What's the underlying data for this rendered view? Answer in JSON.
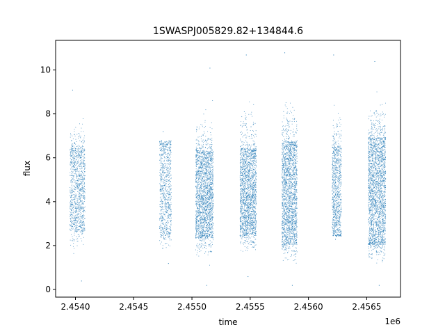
{
  "chart_data": {
    "type": "scatter",
    "title": "1SWASPJ005829.82+134844.6",
    "xlabel": "time",
    "ylabel": "flux",
    "x_offset_label": "1e6",
    "xlim": [
      2.45383,
      2.45679
    ],
    "ylim": [
      -0.35,
      11.35
    ],
    "x_ticks": [
      2.454,
      2.4545,
      2.455,
      2.4555,
      2.456,
      2.4565
    ],
    "x_tick_labels": [
      "2.4540",
      "2.4545",
      "2.4550",
      "2.4555",
      "2.4560",
      "2.4565"
    ],
    "y_ticks": [
      0,
      2,
      4,
      6,
      8,
      10
    ],
    "y_tick_labels": [
      "0",
      "2",
      "4",
      "6",
      "8",
      "10"
    ],
    "grid": false,
    "marker_color": "#1f77b4",
    "clusters": [
      {
        "x_start": 2.45395,
        "x_end": 2.45408,
        "core_low": 2.7,
        "core_high": 6.4,
        "min": 0.4,
        "max": 9.1,
        "density": 0.55
      },
      {
        "x_start": 2.45472,
        "x_end": 2.45482,
        "core_low": 2.5,
        "core_high": 6.6,
        "min": 1.2,
        "max": 7.2,
        "density": 0.55
      },
      {
        "x_start": 2.45503,
        "x_end": 2.45518,
        "core_low": 2.4,
        "core_high": 6.3,
        "min": 0.2,
        "max": 10.1,
        "density": 0.9
      },
      {
        "x_start": 2.45541,
        "x_end": 2.45555,
        "core_low": 2.5,
        "core_high": 6.4,
        "min": 0.6,
        "max": 10.7,
        "density": 0.9
      },
      {
        "x_start": 2.45577,
        "x_end": 2.4559,
        "core_low": 2.1,
        "core_high": 6.7,
        "min": 0.2,
        "max": 10.8,
        "density": 1.0
      },
      {
        "x_start": 2.4562,
        "x_end": 2.45628,
        "core_low": 2.5,
        "core_high": 6.5,
        "min": 2.3,
        "max": 10.7,
        "density": 0.75
      },
      {
        "x_start": 2.45651,
        "x_end": 2.45666,
        "core_low": 2.1,
        "core_high": 6.9,
        "min": 0.2,
        "max": 10.4,
        "density": 1.0
      }
    ]
  }
}
